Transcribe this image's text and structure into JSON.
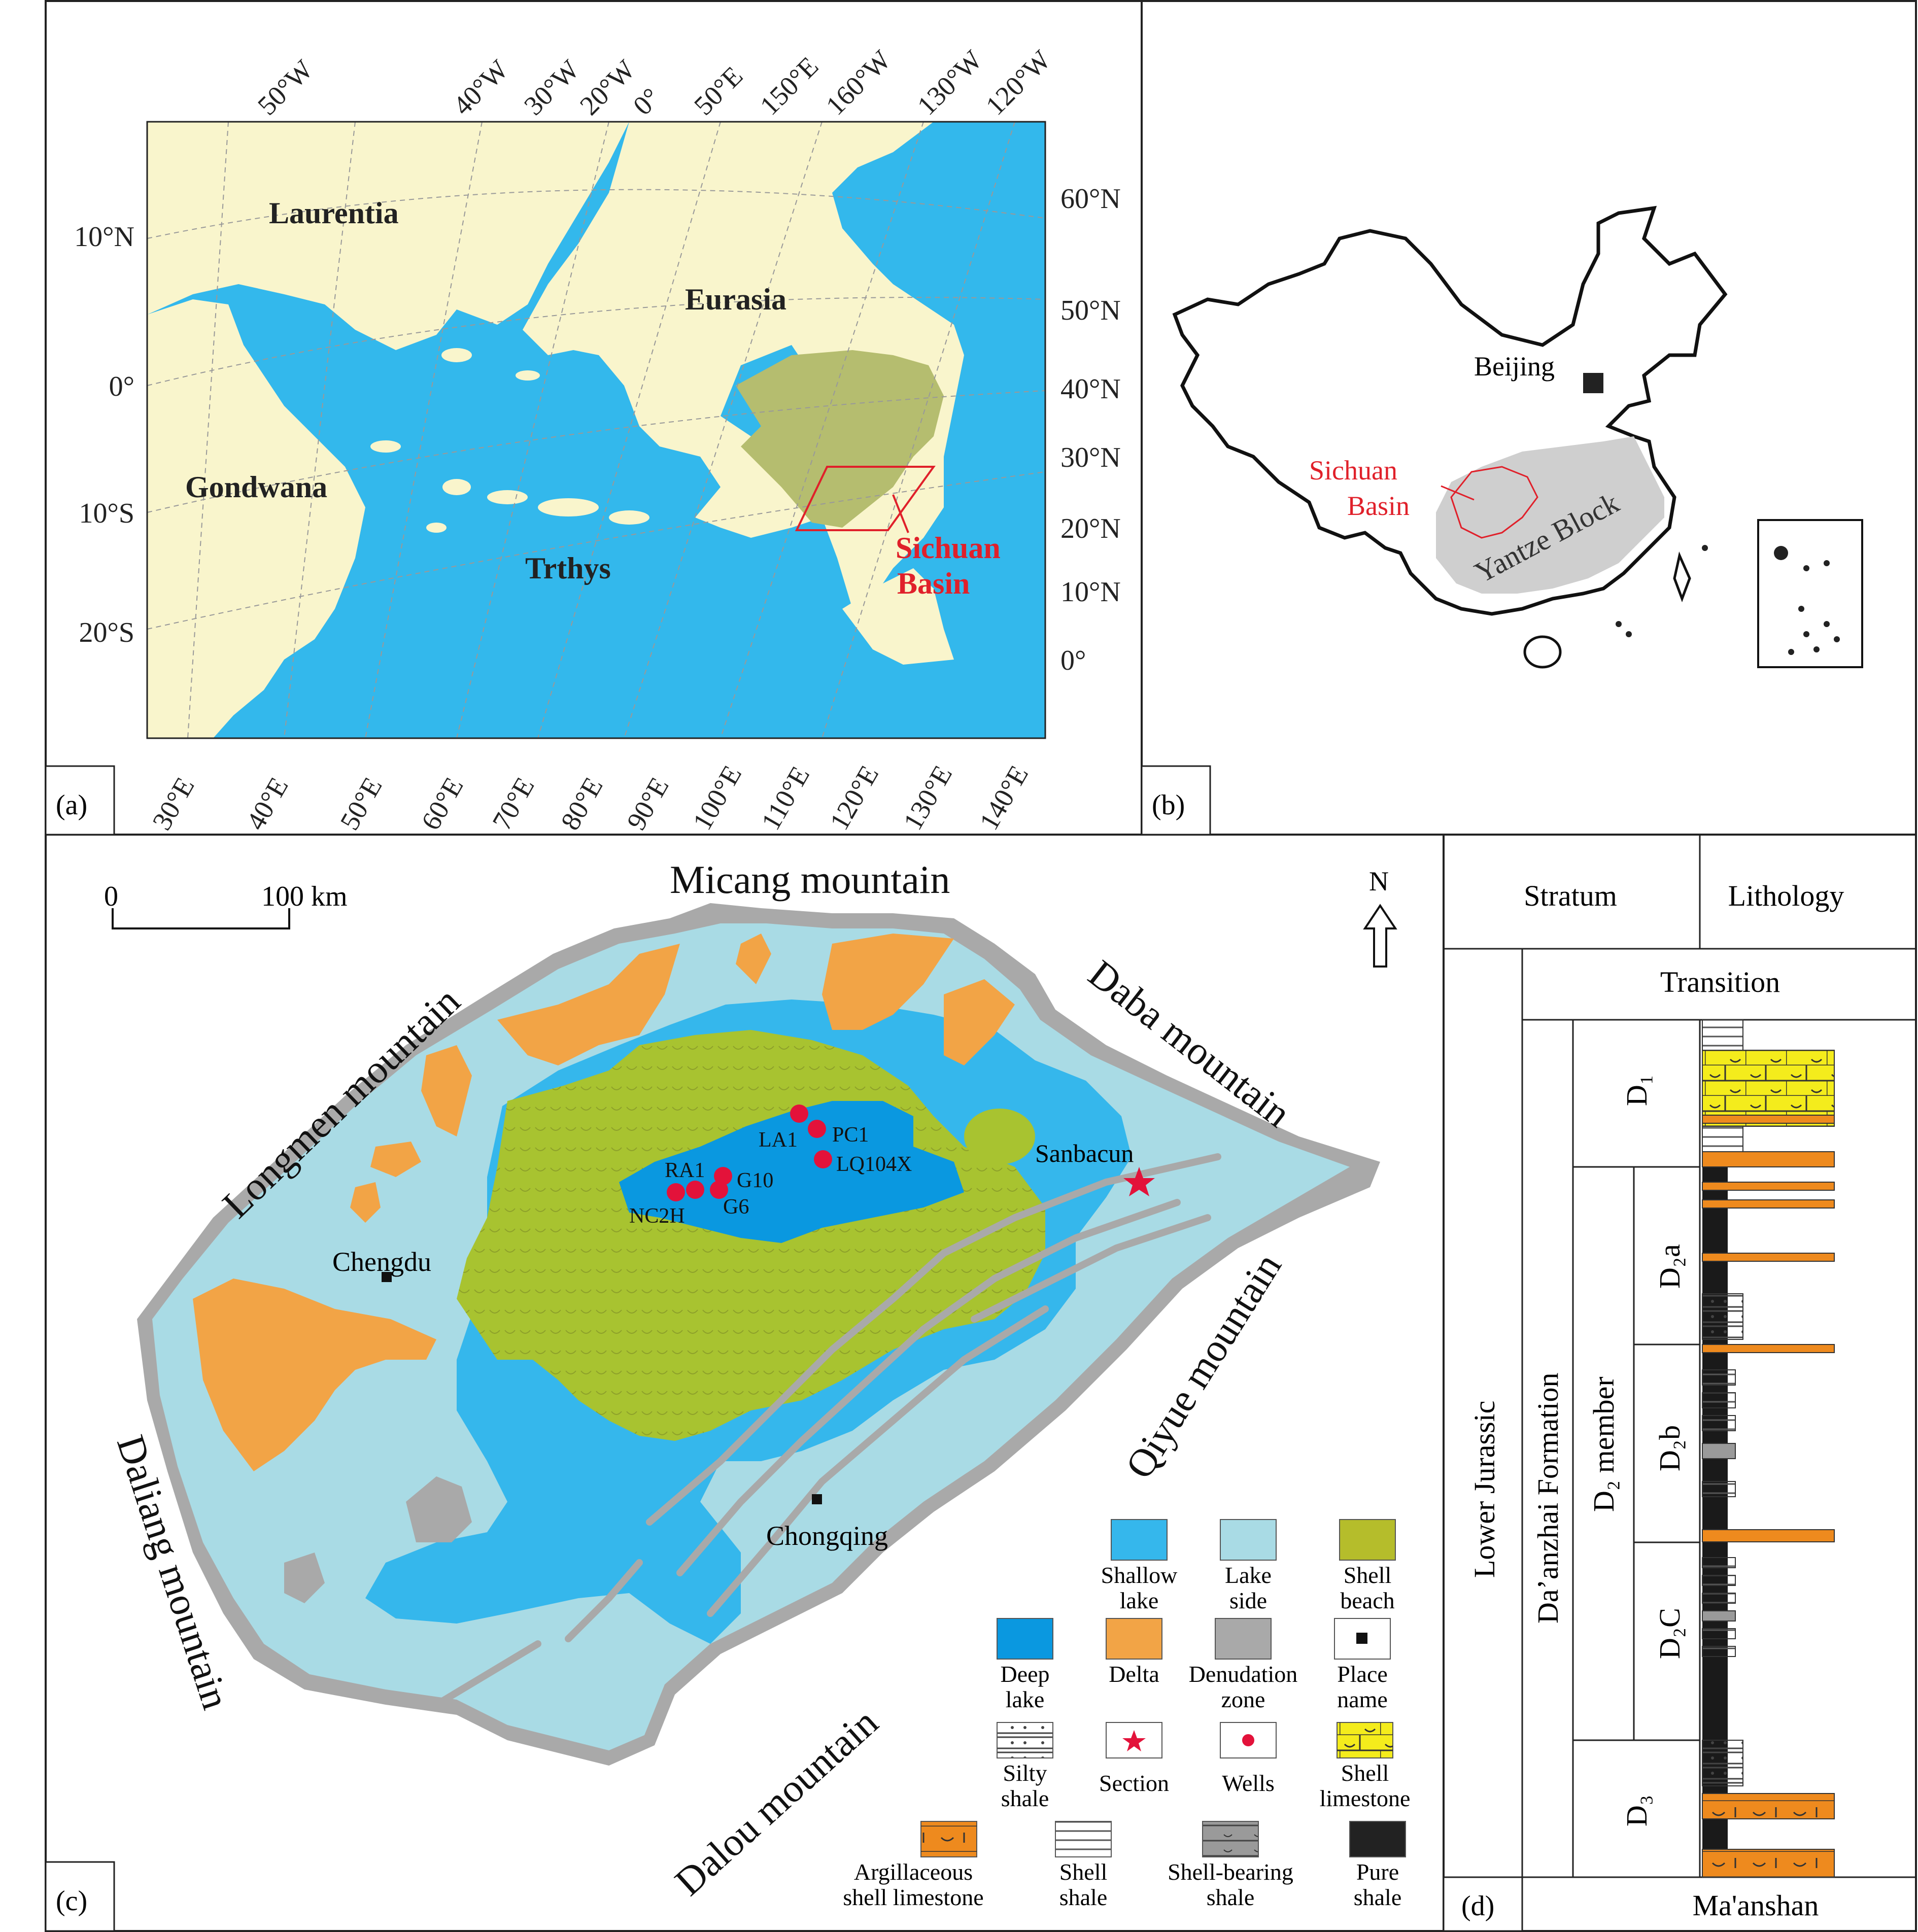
{
  "colors": {
    "land": "#f9f5cc",
    "ocean": "#33b8ec",
    "shell_beach_paleo": "#b5bd6f",
    "red": "#e0202a",
    "deep_lake": "#0a98e0",
    "shallow_lake": "#35b7ec",
    "lake_side": "#a9dbe5",
    "shell_beach": "#a8c330",
    "delta": "#f2a446",
    "denudation": "#a9a9a9",
    "well": "#e3123a",
    "shell_limestone": "#f4ec1c",
    "argillaceous": "#ee8a1e",
    "pure_shale": "#222222"
  },
  "panel_a": {
    "label": "(a)",
    "lon_top": [
      "50°W",
      "40°W",
      "30°W",
      "20°W",
      "0°",
      "50°E",
      "150°E",
      "160°W",
      "130°W",
      "120°W"
    ],
    "lat_left": [
      "10°N",
      "0°",
      "10°S",
      "20°S"
    ],
    "lat_right": [
      "60°N",
      "50°N",
      "40°N",
      "30°N",
      "20°N",
      "10°N",
      "0°"
    ],
    "lon_bottom": [
      "30°E",
      "40°E",
      "50°E",
      "60°E",
      "70°E",
      "80°E",
      "90°E",
      "100°E",
      "110°E",
      "120°E",
      "130°E",
      "140°E"
    ],
    "continents": {
      "laurentia": "Laurentia",
      "eurasia": "Eurasia",
      "gondwana": "Gondwana",
      "tethys": "Trthys"
    },
    "basin_label": [
      "Sichuan",
      "Basin"
    ]
  },
  "panel_b": {
    "label": "(b)",
    "beijing": "Beijing",
    "sichuan": [
      "Sichuan",
      "Basin"
    ],
    "yangtze": "Yantze Block"
  },
  "panel_c": {
    "label": "(c)",
    "scale": {
      "zero": "0",
      "hundred": "100 km"
    },
    "north": "N",
    "mountains": {
      "micang": "Micang mountain",
      "longmen": "Longmen mountain",
      "daba": "Daba mountain",
      "qiyue": "Qiyue mountain",
      "daliang": "Daliang mountain",
      "dalou": "Dalou mountain"
    },
    "cities": {
      "chengdu": "Chengdu",
      "chongqing": "Chongqing"
    },
    "section": "Sanbacun",
    "wells": [
      "LA1",
      "PC1",
      "LQ104X",
      "RA1",
      "G10",
      "G6",
      "NC2H"
    ],
    "legend": [
      {
        "key": "shallow",
        "label": [
          "Shallow",
          "lake"
        ]
      },
      {
        "key": "lakeside",
        "label": [
          "Lake",
          "side"
        ]
      },
      {
        "key": "shellbeach",
        "label": [
          "Shell",
          "beach"
        ]
      },
      {
        "key": "deep",
        "label": [
          "Deep",
          "lake"
        ]
      },
      {
        "key": "delta",
        "label": [
          "Delta"
        ]
      },
      {
        "key": "denudation",
        "label": [
          "Denudation",
          "zone"
        ]
      },
      {
        "key": "place",
        "label": [
          "Place",
          "name"
        ]
      },
      {
        "key": "silty",
        "label": [
          "Silty",
          "shale"
        ]
      },
      {
        "key": "section",
        "label": [
          "Section"
        ]
      },
      {
        "key": "wells",
        "label": [
          "Wells"
        ]
      },
      {
        "key": "shelllime",
        "label": [
          "Shell",
          "limestone"
        ]
      },
      {
        "key": "argill",
        "label": [
          "Argillaceous",
          "shell limestone"
        ]
      },
      {
        "key": "shellshale",
        "label": [
          "Shell",
          "shale"
        ]
      },
      {
        "key": "shellbearing",
        "label": [
          "Shell-bearing",
          "shale"
        ]
      },
      {
        "key": "pure",
        "label": [
          "Pure",
          "shale"
        ]
      }
    ]
  },
  "panel_d": {
    "label": "(d)",
    "header_stratum": "Stratum",
    "header_lithology": "Lithology",
    "transition": "Transition",
    "lower_jurassic": "Lower Jurassic",
    "formation": "Da’anzhai Formation",
    "d2_member": "D₂ member",
    "units": [
      "D₁",
      "D₂a",
      "D₂b",
      "D₂C",
      "D₃"
    ],
    "base": "Ma'anshan"
  }
}
